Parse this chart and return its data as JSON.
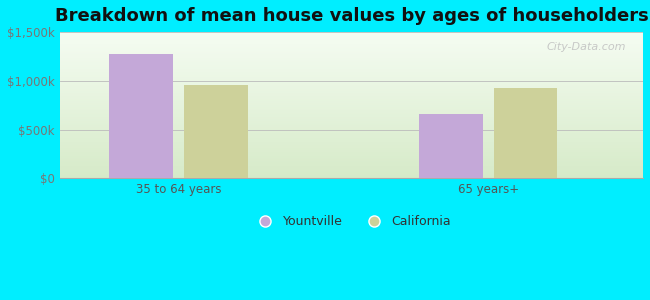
{
  "title": "Breakdown of mean house values by ages of householders",
  "categories": [
    "35 to 64 years",
    "65 years+"
  ],
  "yountville_values": [
    1275000,
    660000
  ],
  "california_values": [
    960000,
    930000
  ],
  "yountville_color": "#c4a8d8",
  "california_color": "#cdd19a",
  "background_outer": "#00eeff",
  "background_inner_bottom": "#d6eac8",
  "background_inner_top": "#f0f8ec",
  "ylim": [
    0,
    1500000
  ],
  "yticks": [
    0,
    500000,
    1000000,
    1500000
  ],
  "ytick_labels": [
    "$0",
    "$500k",
    "$1,000k",
    "$1,500k"
  ],
  "legend_yountville": "Yountville",
  "legend_california": "California",
  "bar_width": 0.35,
  "title_fontsize": 13,
  "watermark": "City-Data.com"
}
